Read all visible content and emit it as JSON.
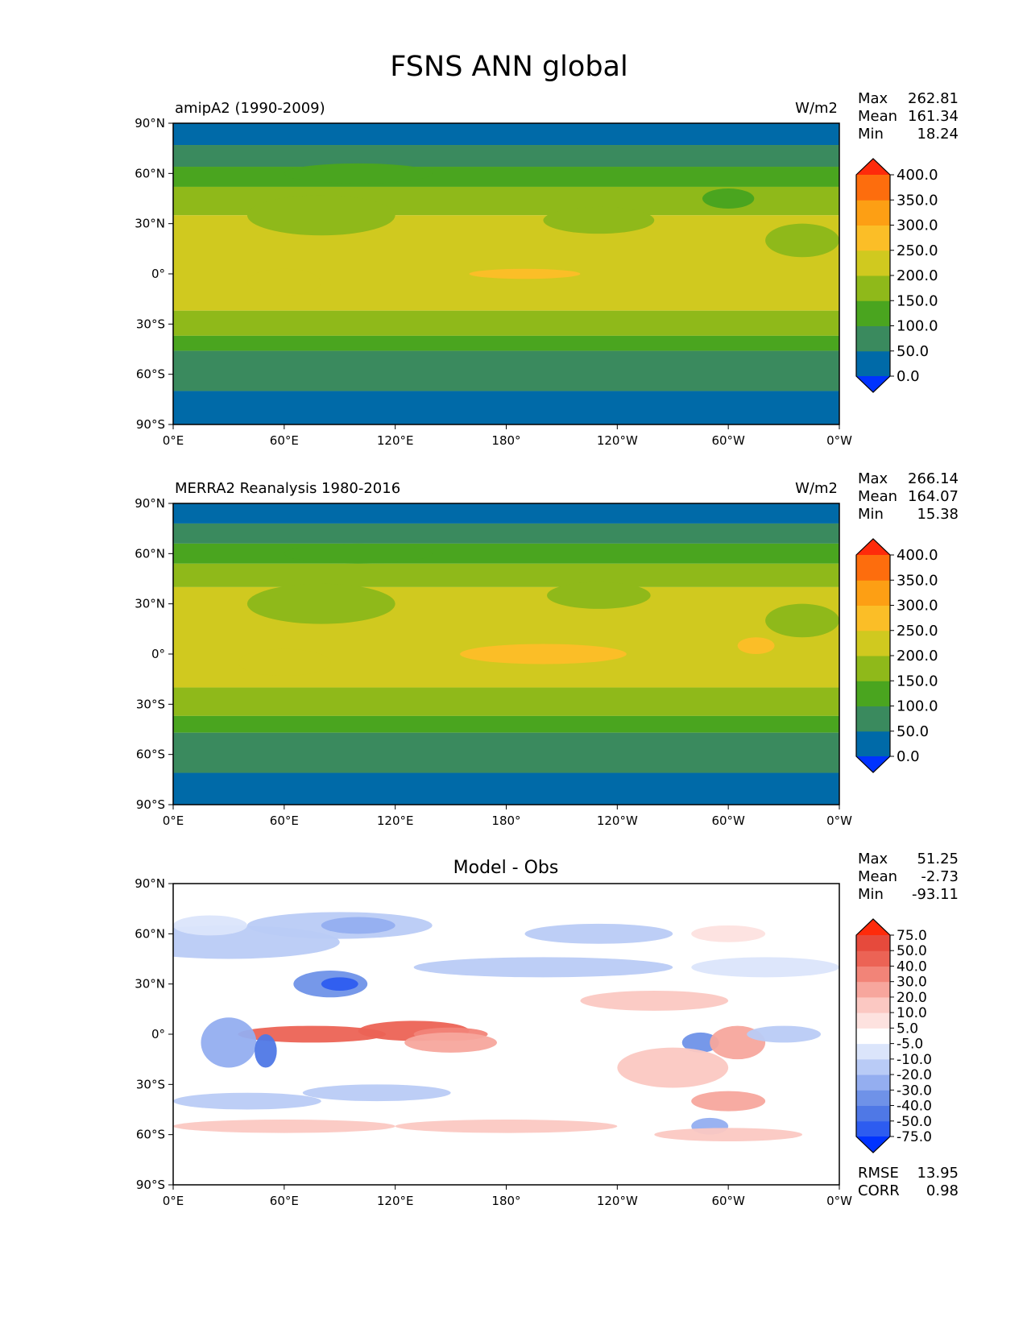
{
  "figure": {
    "title": "FSNS ANN global"
  },
  "colors": {
    "field_levels": [
      "#0033ff",
      "#006aa8",
      "#3a8a5e",
      "#4aa51f",
      "#8fb91a",
      "#d0c91f",
      "#fbbe27",
      "#fd9f14",
      "#fd6d0d",
      "#fe2b0b"
    ],
    "diff_levels": [
      "#0033ff",
      "#2d5cf0",
      "#4f78e6",
      "#6f92e8",
      "#94aef0",
      "#b9cbf6",
      "#dbe5fb",
      "#ffffff",
      "#fde2df",
      "#fbc8c2",
      "#f7a69d",
      "#f28478",
      "#ec6355",
      "#e64a3c",
      "#fe2b0b"
    ],
    "land_outline": "#000000"
  },
  "chart_data": [
    {
      "type": "heatmap",
      "subtitle_left": "amipA2 (1990-2009)",
      "subtitle_right": "W/m2",
      "stats": [
        {
          "label": "Max",
          "value": "262.81"
        },
        {
          "label": "Mean",
          "value": "161.34"
        },
        {
          "label": "Min",
          "value": "18.24"
        }
      ],
      "colorbar": {
        "levels": [
          0,
          50,
          100,
          150,
          200,
          250,
          300,
          350,
          400
        ],
        "labels": [
          "0.0",
          "50.0",
          "100.0",
          "150.0",
          "200.0",
          "250.0",
          "300.0",
          "350.0",
          "400.0"
        ],
        "extend": "both"
      },
      "xticks": [
        "0°E",
        "60°E",
        "120°E",
        "180°",
        "120°W",
        "60°W",
        "0°W"
      ],
      "yticks": [
        "90°N",
        "60°N",
        "30°N",
        "0°",
        "30°S",
        "60°S",
        "90°S"
      ],
      "xlim": [
        0,
        360
      ],
      "ylim": [
        -90,
        90
      ]
    },
    {
      "type": "heatmap",
      "subtitle_left": "MERRA2 Reanalysis 1980-2016",
      "subtitle_right": "W/m2",
      "stats": [
        {
          "label": "Max",
          "value": "266.14"
        },
        {
          "label": "Mean",
          "value": "164.07"
        },
        {
          "label": "Min",
          "value": "15.38"
        }
      ],
      "colorbar": {
        "levels": [
          0,
          50,
          100,
          150,
          200,
          250,
          300,
          350,
          400
        ],
        "labels": [
          "0.0",
          "50.0",
          "100.0",
          "150.0",
          "200.0",
          "250.0",
          "300.0",
          "350.0",
          "400.0"
        ],
        "extend": "both"
      },
      "xticks": [
        "0°E",
        "60°E",
        "120°E",
        "180°",
        "120°W",
        "60°W",
        "0°W"
      ],
      "yticks": [
        "90°N",
        "60°N",
        "30°N",
        "0°",
        "30°S",
        "60°S",
        "90°S"
      ],
      "xlim": [
        0,
        360
      ],
      "ylim": [
        -90,
        90
      ]
    },
    {
      "type": "heatmap",
      "title": "Model - Obs",
      "stats": [
        {
          "label": "Max",
          "value": "51.25"
        },
        {
          "label": "Mean",
          "value": "-2.73"
        },
        {
          "label": "Min",
          "value": "-93.11"
        }
      ],
      "colorbar": {
        "levels": [
          -75,
          -50,
          -40,
          -30,
          -20,
          -10,
          -5,
          5,
          10,
          20,
          30,
          40,
          50,
          75
        ],
        "labels": [
          "-75.0",
          "-50.0",
          "-40.0",
          "-30.0",
          "-20.0",
          "-10.0",
          "-5.0",
          "5.0",
          "10.0",
          "20.0",
          "30.0",
          "40.0",
          "50.0",
          "75.0"
        ],
        "extend": "both"
      },
      "footer_stats": [
        {
          "label": "RMSE",
          "value": "13.95"
        },
        {
          "label": "CORR",
          "value": "0.98"
        }
      ],
      "xticks": [
        "0°E",
        "60°E",
        "120°E",
        "180°",
        "120°W",
        "60°W",
        "0°W"
      ],
      "yticks": [
        "90°N",
        "60°N",
        "30°N",
        "0°",
        "30°S",
        "60°S",
        "90°S"
      ],
      "xlim": [
        0,
        360
      ],
      "ylim": [
        -90,
        90
      ]
    }
  ]
}
